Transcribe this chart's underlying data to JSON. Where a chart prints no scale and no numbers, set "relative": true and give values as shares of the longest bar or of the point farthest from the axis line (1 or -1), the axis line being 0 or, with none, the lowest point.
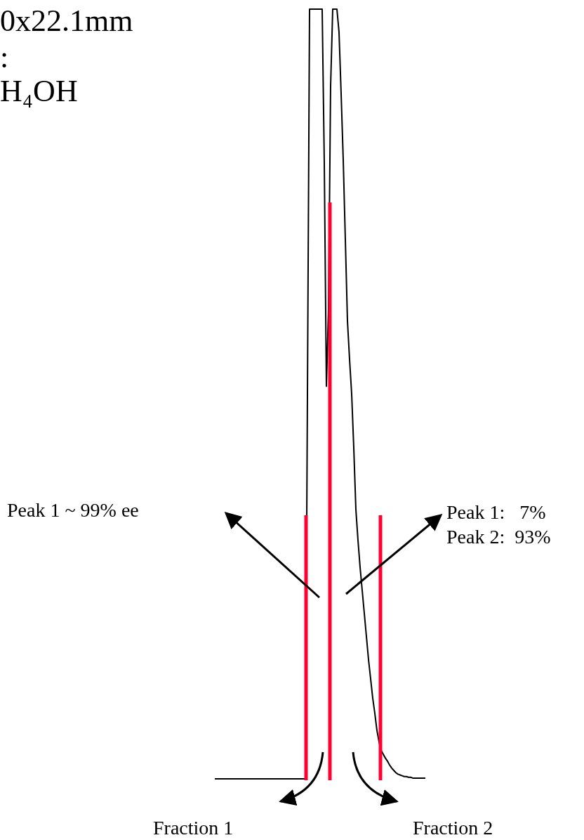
{
  "chart_data": {
    "type": "line",
    "relative": true,
    "tick_labels": false,
    "annotations": [
      "0x22.1mm",
      ":",
      "H₄OH",
      "Peak 1 ~ 99% ee",
      "Peak 1:   7%",
      "Peak 2:  93%",
      "Fraction 1",
      "Fraction 2"
    ],
    "categories": [
      null,
      null,
      null,
      null,
      null,
      null,
      null,
      null,
      null,
      null,
      null,
      null,
      null,
      null,
      null,
      null,
      null,
      null,
      null,
      null,
      null,
      null,
      null,
      null,
      null,
      null,
      null,
      null,
      null,
      null,
      null,
      null,
      null,
      null,
      null,
      null,
      null,
      null,
      null,
      null,
      null,
      null,
      null,
      null,
      null,
      null,
      null,
      null,
      null,
      null,
      null,
      null,
      null,
      null,
      null,
      null,
      null,
      null,
      null,
      null,
      null,
      null,
      null,
      null,
      null,
      null,
      null,
      null,
      null,
      null,
      null,
      null,
      null,
      null,
      null,
      null,
      null,
      null,
      null,
      null,
      null,
      null,
      null,
      null,
      null,
      null,
      null,
      null,
      null,
      null,
      null,
      null,
      null,
      null,
      null,
      null,
      null,
      null,
      null,
      null,
      null
    ],
    "series": [
      {
        "color": "#000000",
        "values": [
          0,
          0,
          0,
          0,
          0,
          0,
          0,
          0,
          0,
          0,
          0,
          0,
          0,
          0,
          0,
          0,
          0,
          0,
          0,
          0,
          0,
          0,
          0,
          0,
          0,
          0,
          0,
          0,
          0,
          0,
          0,
          0,
          0,
          0,
          0,
          0,
          0,
          0,
          0,
          0,
          0,
          0,
          0,
          0,
          0.5,
          1.0,
          1.0,
          1.0,
          1.0,
          1.0,
          1.0,
          1.0,
          0.8,
          0.51,
          0.61,
          0.9,
          1.0,
          1.0,
          1.0,
          0.97,
          0.89,
          0.804,
          0.7,
          0.595,
          0.545,
          0.5,
          0.43,
          0.35,
          0.31,
          0.275,
          0.245,
          0.215,
          0.185,
          0.155,
          0.13,
          0.105,
          0.085,
          0.063,
          0.048,
          0.037,
          0.032,
          0.027,
          0.023,
          0.018,
          0.014,
          0.011,
          0.008,
          0.006,
          0.005,
          0.004,
          0.003,
          0.003,
          0.002,
          0.002,
          0.001,
          0.001,
          0.001,
          0.001,
          0.001,
          0.001,
          0.001
        ]
      }
    ],
    "ref_lines": [
      {
        "axis": "x",
        "color": "#ff0033"
      },
      {
        "axis": "x",
        "color": "#ff0033"
      },
      {
        "axis": "x",
        "color": "#ff0033"
      }
    ]
  }
}
